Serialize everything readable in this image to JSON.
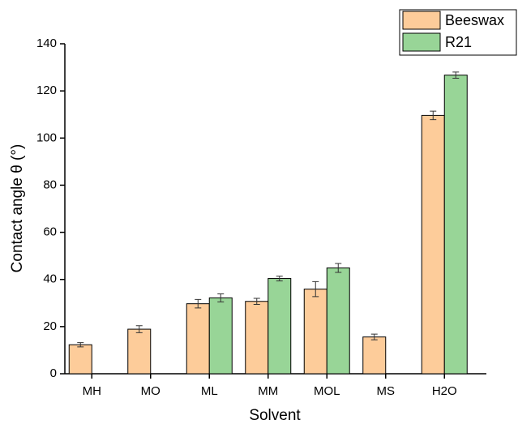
{
  "chart_data": {
    "type": "bar",
    "x_label": "Solvent",
    "y_label": "Contact angle θ (°)",
    "categories": [
      "MH",
      "MO",
      "ML",
      "MM",
      "MOL",
      "MS",
      "H2O"
    ],
    "series": [
      {
        "name": "Beeswax",
        "color": "#fdcc9a",
        "values": [
          12.3,
          18.9,
          29.7,
          30.7,
          35.9,
          15.6,
          109.6
        ],
        "errors": [
          0.9,
          1.5,
          1.8,
          1.3,
          3.2,
          1.2,
          1.8
        ]
      },
      {
        "name": "R21",
        "color": "#98d597",
        "values": [
          null,
          null,
          32.2,
          40.4,
          44.9,
          null,
          126.7
        ],
        "errors": [
          null,
          null,
          1.7,
          1.0,
          1.9,
          null,
          1.3
        ]
      }
    ],
    "ylim": [
      0,
      140
    ],
    "yticks": [
      0,
      20,
      40,
      60,
      80,
      100,
      120,
      140
    ],
    "legend": "upper right"
  }
}
